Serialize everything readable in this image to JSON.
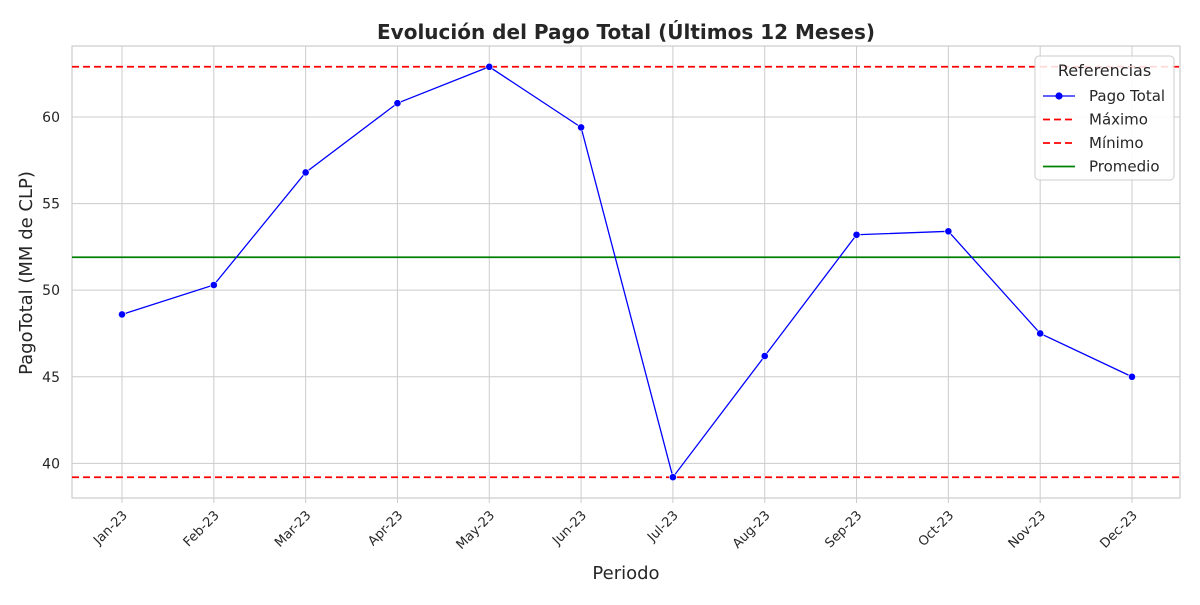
{
  "chart_data": {
    "type": "line",
    "title": "Evolución del Pago Total (Últimos 12 Meses)",
    "xlabel": "Periodo",
    "ylabel": "PagoTotal (MM de CLP)",
    "categories": [
      "Jan-23",
      "Feb-23",
      "Mar-23",
      "Apr-23",
      "May-23",
      "Jun-23",
      "Jul-23",
      "Aug-23",
      "Sep-23",
      "Oct-23",
      "Nov-23",
      "Dec-23"
    ],
    "series": [
      {
        "name": "Pago Total",
        "values": [
          48.6,
          50.3,
          56.8,
          60.8,
          62.9,
          59.4,
          39.2,
          46.2,
          53.2,
          53.4,
          47.5,
          45.0
        ],
        "color": "#0000ff",
        "style": "solid",
        "marker": "circle"
      }
    ],
    "reference_lines": [
      {
        "name": "Máximo",
        "value": 62.9,
        "color": "#ff0000",
        "style": "dashed"
      },
      {
        "name": "Mínimo",
        "value": 39.2,
        "color": "#ff0000",
        "style": "dashed"
      },
      {
        "name": "Promedio",
        "value": 51.9,
        "color": "#008000",
        "style": "solid"
      }
    ],
    "yticks": [
      40,
      45,
      50,
      55,
      60
    ],
    "ylim": [
      38.0,
      64.1
    ],
    "grid": true,
    "legend": {
      "title": "Referencias",
      "position": "top-right"
    }
  }
}
